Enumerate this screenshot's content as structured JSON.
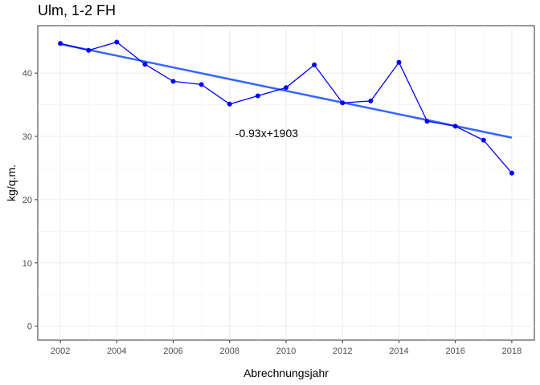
{
  "chart_data": {
    "type": "line",
    "title": "Ulm, 1-2 FH",
    "xlabel": "Abrechnungsjahr",
    "ylabel": "kg/q.m.",
    "xlim": [
      2001.2,
      2018.8
    ],
    "ylim": [
      -2.2,
      47.5
    ],
    "x_ticks": [
      2002,
      2004,
      2006,
      2008,
      2010,
      2012,
      2014,
      2016,
      2018
    ],
    "y_ticks": [
      0,
      10,
      20,
      30,
      40
    ],
    "grid": true,
    "series": [
      {
        "x": [
          2002,
          2003,
          2004,
          2005,
          2006,
          2007,
          2008,
          2009,
          2010,
          2011,
          2012,
          2013,
          2014,
          2015,
          2016,
          2017,
          2018
        ],
        "values": [
          44.7,
          43.6,
          44.9,
          41.4,
          38.7,
          38.2,
          35.1,
          36.4,
          37.7,
          41.3,
          35.3,
          35.6,
          41.7,
          32.4,
          31.6,
          29.4,
          24.2
        ],
        "color": "#0000ff"
      }
    ],
    "trend": {
      "slope": -0.93,
      "intercept": 1903,
      "from": 2002,
      "to": 2018,
      "start": 44.6,
      "end": 29.8,
      "color": "#3366ff"
    },
    "annotation": {
      "text": "-0.93x+1903",
      "x": 2008.2,
      "y": 29.9
    }
  }
}
